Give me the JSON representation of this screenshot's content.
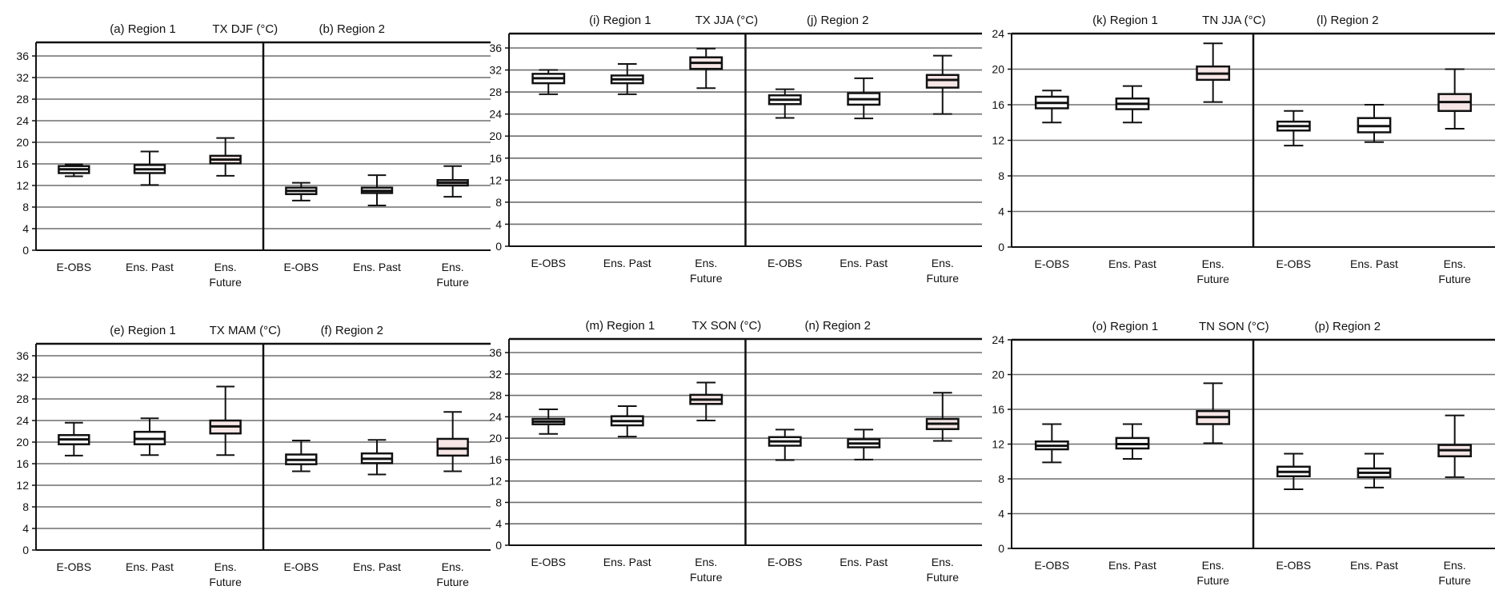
{
  "figure": {
    "category_labels": [
      "E-OBS",
      "Ens. Past",
      [
        "Ens.",
        "Future"
      ]
    ],
    "colors": {
      "box_fill": "#ffffff",
      "future_fill": "#f7e6e6",
      "line": "#111111",
      "grid": "#6e6e6e"
    }
  },
  "chart_data": [
    {
      "type": "boxplot",
      "titles": [
        "(a) Region 1",
        "TX DJF (°C)",
        "(b) Region 2"
      ],
      "yticks": [
        "0",
        "4",
        "8",
        "12",
        "16",
        "20",
        "24",
        "28",
        "32",
        "36"
      ],
      "ylim": [
        0,
        38
      ],
      "grid": true,
      "regions": [
        {
          "name": "Region 1",
          "boxes": [
            {
              "category": "E-OBS",
              "min": 13.7,
              "q1": 14.3,
              "median": 15.0,
              "q3": 15.6,
              "max": 15.9
            },
            {
              "category": "Ens. Past",
              "min": 12.1,
              "q1": 14.3,
              "median": 15.0,
              "q3": 15.8,
              "max": 18.3
            },
            {
              "category": "Ens. Future",
              "min": 13.8,
              "q1": 16.1,
              "median": 16.8,
              "q3": 17.5,
              "max": 20.8
            }
          ]
        },
        {
          "name": "Region 2",
          "boxes": [
            {
              "category": "E-OBS",
              "min": 9.2,
              "q1": 10.4,
              "median": 11.0,
              "q3": 11.6,
              "max": 12.5
            },
            {
              "category": "Ens. Past",
              "min": 8.3,
              "q1": 10.6,
              "median": 11.0,
              "q3": 11.6,
              "max": 13.9
            },
            {
              "category": "Ens. Future",
              "min": 9.9,
              "q1": 12.0,
              "median": 12.5,
              "q3": 13.0,
              "max": 15.6
            }
          ]
        }
      ]
    },
    {
      "type": "boxplot",
      "titles": [
        "(i) Region 1",
        "TX JJA (°C)",
        "(j) Region 2"
      ],
      "yticks": [
        "0",
        "4",
        "8",
        "12",
        "16",
        "20",
        "24",
        "28",
        "32",
        "36"
      ],
      "ylim": [
        0,
        38
      ],
      "grid": true,
      "regions": [
        {
          "name": "Region 1",
          "boxes": [
            {
              "category": "E-OBS",
              "min": 27.6,
              "q1": 29.6,
              "median": 30.5,
              "q3": 31.3,
              "max": 32.0
            },
            {
              "category": "Ens. Past",
              "min": 27.6,
              "q1": 29.6,
              "median": 30.3,
              "q3": 31.0,
              "max": 33.1
            },
            {
              "category": "Ens. Future",
              "min": 28.7,
              "q1": 32.2,
              "median": 33.3,
              "q3": 34.3,
              "max": 35.9
            }
          ]
        },
        {
          "name": "Region 2",
          "boxes": [
            {
              "category": "E-OBS",
              "min": 23.3,
              "q1": 25.8,
              "median": 26.6,
              "q3": 27.4,
              "max": 28.5
            },
            {
              "category": "Ens. Past",
              "min": 23.2,
              "q1": 25.7,
              "median": 26.7,
              "q3": 27.8,
              "max": 30.5
            },
            {
              "category": "Ens. Future",
              "min": 24.0,
              "q1": 28.8,
              "median": 30.2,
              "q3": 31.1,
              "max": 34.6
            }
          ]
        }
      ]
    },
    {
      "type": "boxplot",
      "titles": [
        "(k) Region 1",
        "TN JJA (°C)",
        "(l) Region 2"
      ],
      "yticks": [
        "0",
        "4",
        "8",
        "12",
        "16",
        "20",
        "24"
      ],
      "ylim": [
        0,
        24
      ],
      "grid": true,
      "regions": [
        {
          "name": "Region 1",
          "boxes": [
            {
              "category": "E-OBS",
              "min": 14.0,
              "q1": 15.6,
              "median": 16.2,
              "q3": 16.9,
              "max": 17.6
            },
            {
              "category": "Ens. Past",
              "min": 14.0,
              "q1": 15.5,
              "median": 16.1,
              "q3": 16.7,
              "max": 18.1
            },
            {
              "category": "Ens. Future",
              "min": 16.3,
              "q1": 18.8,
              "median": 19.5,
              "q3": 20.3,
              "max": 22.9
            }
          ]
        },
        {
          "name": "Region 2",
          "boxes": [
            {
              "category": "E-OBS",
              "min": 11.4,
              "q1": 13.1,
              "median": 13.6,
              "q3": 14.1,
              "max": 15.3
            },
            {
              "category": "Ens. Past",
              "min": 11.8,
              "q1": 12.9,
              "median": 13.6,
              "q3": 14.5,
              "max": 16.0
            },
            {
              "category": "Ens. Future",
              "min": 13.3,
              "q1": 15.3,
              "median": 16.3,
              "q3": 17.2,
              "max": 20.0
            }
          ]
        }
      ]
    },
    {
      "type": "boxplot",
      "titles": [
        "(e) Region 1",
        "TX MAM (°C)",
        "(f) Region 2"
      ],
      "yticks": [
        "0",
        "4",
        "8",
        "12",
        "16",
        "20",
        "24",
        "28",
        "32",
        "36"
      ],
      "ylim": [
        0,
        38
      ],
      "grid": true,
      "regions": [
        {
          "name": "Region 1",
          "boxes": [
            {
              "category": "E-OBS",
              "min": 17.5,
              "q1": 19.6,
              "median": 20.5,
              "q3": 21.3,
              "max": 23.6
            },
            {
              "category": "Ens. Past",
              "min": 17.6,
              "q1": 19.6,
              "median": 20.6,
              "q3": 21.9,
              "max": 24.4
            },
            {
              "category": "Ens. Future",
              "min": 17.6,
              "q1": 21.6,
              "median": 22.9,
              "q3": 24.0,
              "max": 30.3
            }
          ]
        },
        {
          "name": "Region 2",
          "boxes": [
            {
              "category": "E-OBS",
              "min": 14.6,
              "q1": 15.9,
              "median": 16.7,
              "q3": 17.7,
              "max": 20.3
            },
            {
              "category": "Ens. Past",
              "min": 14.0,
              "q1": 16.1,
              "median": 16.9,
              "q3": 17.9,
              "max": 20.4
            },
            {
              "category": "Ens. Future",
              "min": 14.6,
              "q1": 17.5,
              "median": 18.8,
              "q3": 20.6,
              "max": 25.6
            }
          ]
        }
      ]
    },
    {
      "type": "boxplot",
      "titles": [
        "(m) Region 1",
        "TX SON (°C)",
        "(n) Region 2"
      ],
      "yticks": [
        "0",
        "4",
        "8",
        "12",
        "16",
        "20",
        "24",
        "28",
        "32",
        "36"
      ],
      "ylim": [
        0,
        38
      ],
      "grid": true,
      "regions": [
        {
          "name": "Region 1",
          "boxes": [
            {
              "category": "E-OBS",
              "min": 20.8,
              "q1": 22.6,
              "median": 23.1,
              "q3": 23.6,
              "max": 25.4
            },
            {
              "category": "Ens. Past",
              "min": 20.3,
              "q1": 22.4,
              "median": 23.2,
              "q3": 24.1,
              "max": 26.0
            },
            {
              "category": "Ens. Future",
              "min": 23.3,
              "q1": 26.4,
              "median": 27.2,
              "q3": 28.1,
              "max": 30.4
            }
          ]
        },
        {
          "name": "Region 2",
          "boxes": [
            {
              "category": "E-OBS",
              "min": 15.9,
              "q1": 18.6,
              "median": 19.4,
              "q3": 20.2,
              "max": 21.6
            },
            {
              "category": "Ens. Past",
              "min": 16.0,
              "q1": 18.3,
              "median": 19.0,
              "q3": 19.8,
              "max": 21.6
            },
            {
              "category": "Ens. Future",
              "min": 19.5,
              "q1": 21.7,
              "median": 22.7,
              "q3": 23.6,
              "max": 28.5
            }
          ]
        }
      ]
    },
    {
      "type": "boxplot",
      "titles": [
        "(o) Region 1",
        "TN SON (°C)",
        "(p) Region 2"
      ],
      "yticks": [
        "0",
        "4",
        "8",
        "12",
        "16",
        "20",
        "24"
      ],
      "ylim": [
        0,
        24
      ],
      "grid": true,
      "regions": [
        {
          "name": "Region 1",
          "boxes": [
            {
              "category": "E-OBS",
              "min": 9.9,
              "q1": 11.4,
              "median": 11.8,
              "q3": 12.3,
              "max": 14.3
            },
            {
              "category": "Ens. Past",
              "min": 10.3,
              "q1": 11.5,
              "median": 12.0,
              "q3": 12.7,
              "max": 14.3
            },
            {
              "category": "Ens. Future",
              "min": 12.1,
              "q1": 14.3,
              "median": 15.1,
              "q3": 15.8,
              "max": 19.0
            }
          ]
        },
        {
          "name": "Region 2",
          "boxes": [
            {
              "category": "E-OBS",
              "min": 6.8,
              "q1": 8.3,
              "median": 8.8,
              "q3": 9.4,
              "max": 10.9
            },
            {
              "category": "Ens. Past",
              "min": 7.0,
              "q1": 8.2,
              "median": 8.7,
              "q3": 9.2,
              "max": 10.9
            },
            {
              "category": "Ens. Future",
              "min": 8.2,
              "q1": 10.6,
              "median": 11.3,
              "q3": 11.9,
              "max": 15.3
            }
          ]
        }
      ]
    }
  ]
}
